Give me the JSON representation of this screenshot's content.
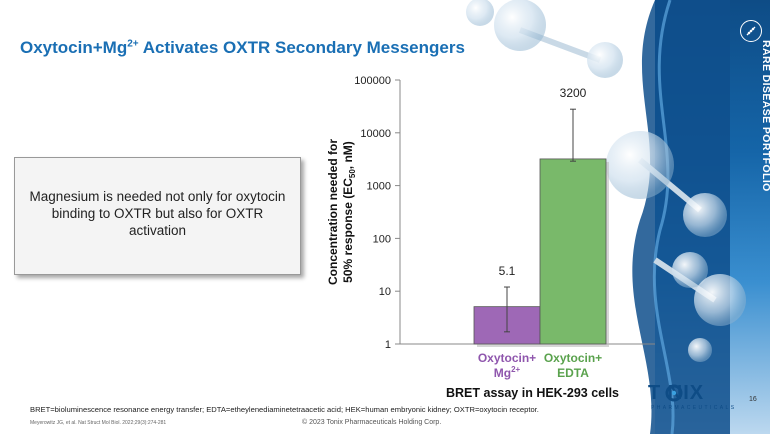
{
  "slide": {
    "title_main": "Oxytocin+Mg",
    "title_sup": "2+",
    "title_rest": " Activates OXTR Secondary Messengers",
    "side_label": "RARE DISEASE PORTFOLIO",
    "callout_text": "Magnesium is needed not only for oxytocin binding to OXTR but also for OXTR activation",
    "assay_label": "BRET assay in HEK-293 cells",
    "footnote": "BRET=bioluminescence resonance energy transfer; EDTA=etheylenediaminetetraacetic acid; HEK=human embryonic kidney; OXTR=oxytocin receptor.",
    "reference": "Meyerowitz JG, et al. Nat Struct Mol Biol. 2022;29(3):274-281",
    "copyright": "© 2023 Tonix Pharmaceuticals Holding Corp.",
    "page_number": "16",
    "logo_word": "T   NIX",
    "logo_sub": "PHARMACEUTICALS"
  },
  "colors": {
    "title": "#1a6fb4",
    "bar_mg": "#9e68b6",
    "bar_edta": "#79b96a",
    "label_mg": "#8f56ad",
    "label_edta": "#5aa24d",
    "panel": "#0e4c86"
  },
  "chart_data": {
    "type": "bar",
    "yscale": "log",
    "ylim": [
      1,
      100000
    ],
    "yticks": [
      "1",
      "10",
      "100",
      "1000",
      "10000",
      "100000"
    ],
    "ylabel_line1": "Concentration needed for",
    "ylabel_line2_pre": "50% response (EC",
    "ylabel_sub": "50",
    "ylabel_line2_post": ", nM)",
    "categories": [
      {
        "line1": "Oxytocin+",
        "line2": "Mg",
        "sup": "2+"
      },
      {
        "line1": "Oxytocin+",
        "line2": "EDTA",
        "sup": ""
      }
    ],
    "values": [
      5.1,
      3200
    ],
    "value_labels": [
      "5.1",
      "3200"
    ],
    "error_high": [
      12,
      28000
    ],
    "error_low": [
      1.7,
      2900
    ]
  }
}
